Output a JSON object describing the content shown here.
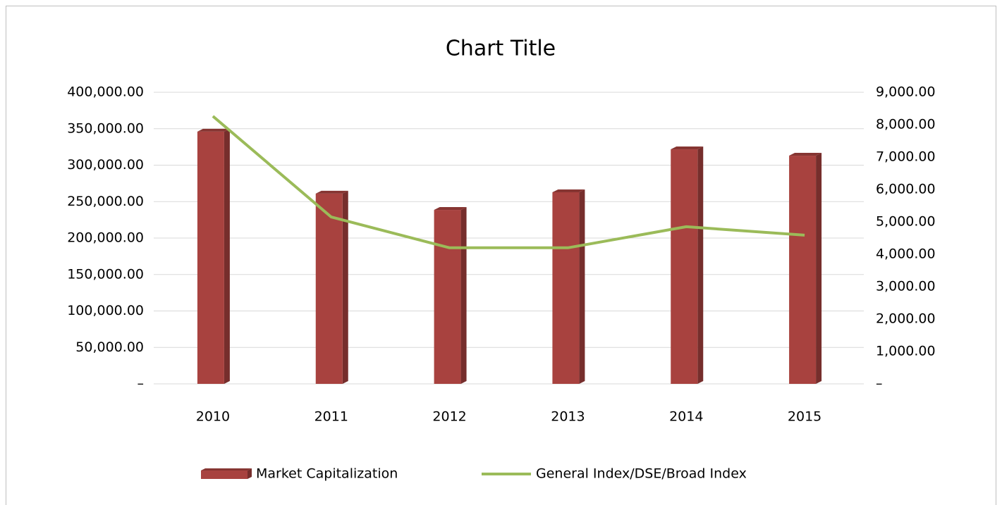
{
  "chart_data": {
    "type": "bar_line",
    "title": "Chart Title",
    "categories": [
      "2010",
      "2011",
      "2012",
      "2013",
      "2014",
      "2015"
    ],
    "series": [
      {
        "name": "Market Capitalization",
        "type": "bar",
        "color": "#a8423f",
        "axis": "y",
        "values": [
          346000,
          261000,
          238600,
          262800,
          321700,
          313000
        ]
      },
      {
        "name": "General Index/DSE/Broad Index",
        "type": "line",
        "color": "#9bbb59",
        "axis": "y2",
        "values": [
          8260,
          5150,
          4200,
          4200,
          4850,
          4590
        ]
      }
    ],
    "ylim": [
      0,
      400000
    ],
    "yticks": [
      {
        "value": 0,
        "label": "–"
      },
      {
        "value": 50000,
        "label": "50,000.00"
      },
      {
        "value": 100000,
        "label": "100,000.00"
      },
      {
        "value": 150000,
        "label": "150,000.00"
      },
      {
        "value": 200000,
        "label": "200,000.00"
      },
      {
        "value": 250000,
        "label": "250,000.00"
      },
      {
        "value": 300000,
        "label": "300,000.00"
      },
      {
        "value": 350000,
        "label": "350,000.00"
      },
      {
        "value": 400000,
        "label": "400,000.00"
      }
    ],
    "y2lim": [
      0,
      9000
    ],
    "y2ticks": [
      {
        "value": 0,
        "label": "–"
      },
      {
        "value": 1000,
        "label": "1,000.00"
      },
      {
        "value": 2000,
        "label": "2,000.00"
      },
      {
        "value": 3000,
        "label": "3,000.00"
      },
      {
        "value": 4000,
        "label": "4,000.00"
      },
      {
        "value": 5000,
        "label": "5,000.00"
      },
      {
        "value": 6000,
        "label": "6,000.00"
      },
      {
        "value": 7000,
        "label": "7,000.00"
      },
      {
        "value": 8000,
        "label": "8,000.00"
      },
      {
        "value": 9000,
        "label": "9,000.00"
      }
    ],
    "grid": true,
    "legend": "bottom"
  }
}
